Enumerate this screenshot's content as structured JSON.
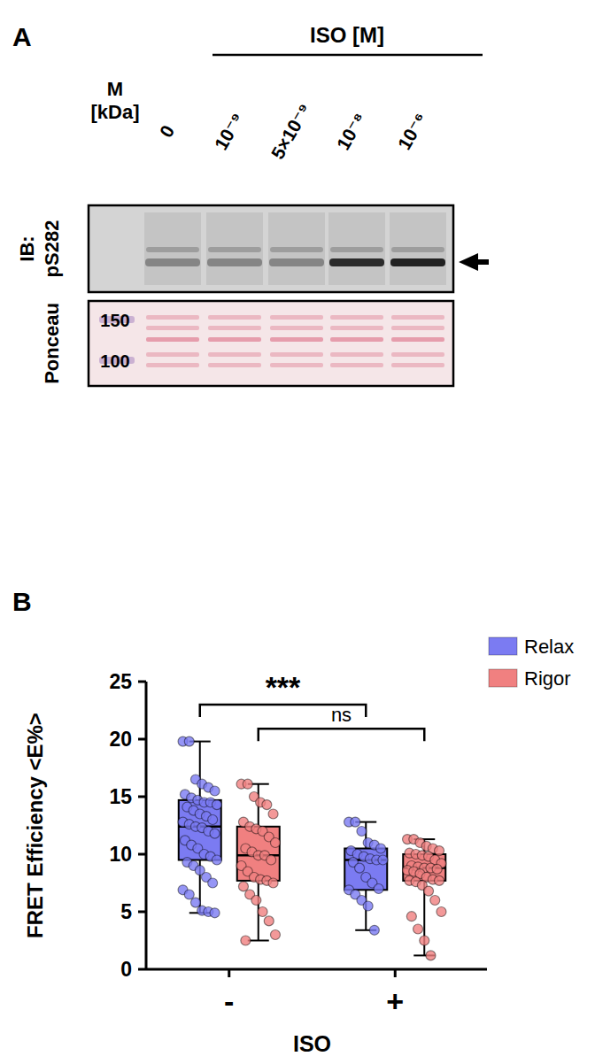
{
  "panel_a": {
    "panel_label": "A",
    "title": "ISO [M]",
    "marker_header": [
      "M",
      "[kDa]"
    ],
    "lanes": [
      "0",
      "10⁻⁹",
      "5×10⁻⁹",
      "10⁻⁸",
      "10⁻⁶"
    ],
    "blot_label": [
      "IB:",
      "pS282"
    ],
    "stain_label": "Ponceau",
    "band_intensity": [
      0.35,
      0.35,
      0.35,
      0.85,
      0.9
    ],
    "markers": [
      150,
      100
    ]
  },
  "chart_data": {
    "type": "box",
    "panel_label": "B",
    "y_label": "FRET Efficiency <E%>",
    "x_label": "ISO",
    "categories": [
      "-",
      "+"
    ],
    "ylim": [
      0,
      25
    ],
    "yticks": [
      0,
      5,
      10,
      15,
      20,
      25
    ],
    "legend": "top-right",
    "series": [
      {
        "name": "Relax",
        "color": "#7b7bf2",
        "stats": [
          {
            "min": 4.9,
            "q1": 9.5,
            "median": 12.4,
            "q3": 14.7,
            "max": 19.8
          },
          {
            "min": 3.4,
            "q1": 6.9,
            "median": 9.5,
            "q3": 10.5,
            "max": 12.8
          }
        ],
        "points": [
          [
            19.8,
            19.8,
            16.5,
            16.1,
            15.8,
            15.5,
            15.2,
            14.9,
            14.7,
            14.5,
            14.5,
            14.3,
            14.1,
            13.8,
            13.5,
            13.3,
            13.0,
            12.8,
            12.6,
            12.4,
            12.3,
            12.0,
            11.8,
            11.2,
            10.8,
            10.5,
            10.0,
            9.8,
            9.5,
            9.3,
            9.0,
            8.6,
            8.0,
            7.5,
            6.9,
            6.5,
            5.8,
            5.1,
            5.0,
            4.9
          ],
          [
            12.8,
            12.8,
            12.0,
            11.0,
            10.8,
            10.5,
            10.3,
            10.0,
            9.8,
            9.6,
            9.5,
            9.5,
            9.3,
            8.8,
            8.0,
            7.5,
            7.0,
            6.9,
            6.5,
            6.0,
            5.5,
            3.4
          ]
        ]
      },
      {
        "name": "Rigor",
        "color": "#f08080",
        "stats": [
          {
            "min": 2.5,
            "q1": 7.7,
            "median": 9.9,
            "q3": 12.4,
            "max": 16.1
          },
          {
            "min": 1.2,
            "q1": 7.7,
            "median": 8.8,
            "q3": 10.0,
            "max": 11.3
          }
        ],
        "points": [
          [
            16.1,
            16.1,
            15.0,
            14.5,
            14.3,
            13.5,
            12.8,
            12.4,
            12.2,
            12.0,
            11.5,
            11.0,
            10.5,
            10.2,
            9.9,
            9.9,
            9.5,
            9.0,
            8.5,
            8.0,
            7.8,
            7.7,
            7.5,
            7.2,
            6.5,
            6.0,
            5.0,
            4.2,
            3.0,
            2.5
          ],
          [
            11.3,
            11.3,
            11.0,
            10.7,
            10.5,
            10.3,
            10.1,
            10.0,
            9.9,
            9.8,
            9.5,
            9.2,
            9.0,
            8.9,
            8.8,
            8.8,
            8.7,
            8.6,
            8.5,
            8.3,
            8.0,
            7.8,
            7.7,
            7.7,
            7.6,
            7.3,
            6.8,
            6.0,
            5.0,
            4.6,
            3.5,
            2.5,
            1.2
          ]
        ]
      }
    ],
    "annotations": [
      {
        "text": "***",
        "series": 0,
        "from": 0,
        "to": 1,
        "y": 23.0
      },
      {
        "text": "ns",
        "series": 1,
        "from": 0,
        "to": 1,
        "y": 20.9
      }
    ]
  }
}
